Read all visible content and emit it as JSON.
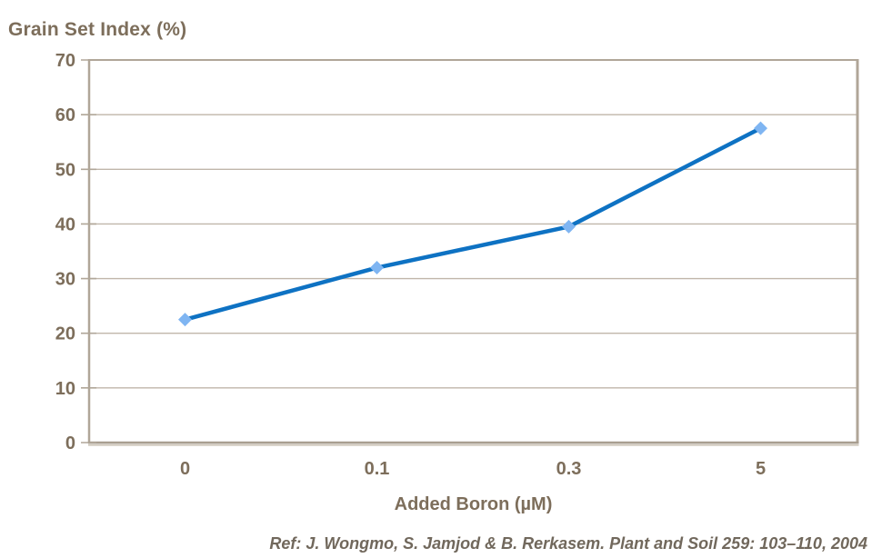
{
  "chart_data": {
    "type": "line",
    "title": "Grain Set Index (%)",
    "xlabel": "Added Boron (µM)",
    "ylabel": "Grain Set Index (%)",
    "categories": [
      "0",
      "0.1",
      "0.3",
      "5"
    ],
    "series": [
      {
        "name": "Grain Set Index",
        "values": [
          22.5,
          32,
          39.5,
          57.5
        ]
      }
    ],
    "ylim": [
      0,
      70
    ],
    "ytick_step": 10,
    "yticks": [
      0,
      10,
      20,
      30,
      40,
      50,
      60,
      70
    ],
    "grid": "horizontal",
    "legend": "none",
    "marker_shape": "diamond"
  },
  "footer": {
    "reference": "Ref: J. Wongmo, S. Jamjod & B. Rerkasem. Plant and Soil 259: 103–110, 2004"
  },
  "colors": {
    "text": "#7D6E5B",
    "reference_text": "#71685C",
    "grid": "#C0B6AA",
    "axis": "#B0A698",
    "axis_bottom": "#A89E90",
    "axis_shadow": "#CFC7BB",
    "line": "#0E72C3",
    "marker": "#7FB5F2",
    "background": "#FFFFFF"
  }
}
